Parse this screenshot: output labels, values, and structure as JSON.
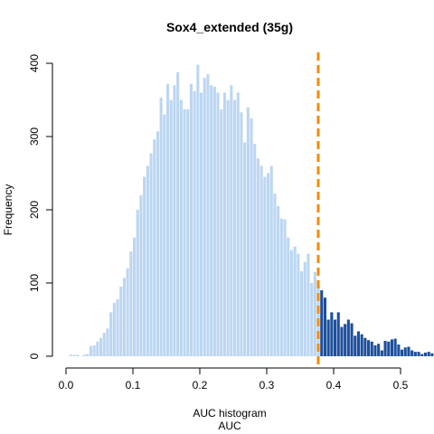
{
  "chart_data": {
    "type": "bar",
    "title": "Sox4_extended (35g)",
    "xlabel_line1": "AUC histogram",
    "xlabel_line2": "AUC",
    "ylabel": "Frequency",
    "xlim": [
      0,
      0.5
    ],
    "ylim": [
      0,
      400
    ],
    "x_ticks": [
      "0.0",
      "0.1",
      "0.2",
      "0.3",
      "0.4",
      "0.5"
    ],
    "y_ticks": [
      "0",
      "100",
      "200",
      "300",
      "400"
    ],
    "bin_start": 0.0,
    "bin_width": 0.005,
    "threshold": 0.377,
    "colors": {
      "below_threshold": "#bcd6f2",
      "above_threshold": "#1d4f9c",
      "threshold_line": "#f28c00"
    },
    "series": [
      {
        "values": [
          0,
          2,
          2,
          2,
          0,
          2,
          3,
          14,
          15,
          20,
          25,
          32,
          38,
          60,
          73,
          78,
          95,
          107,
          120,
          143,
          162,
          200,
          220,
          245,
          260,
          277,
          296,
          307,
          353,
          330,
          372,
          350,
          370,
          388,
          350,
          337,
          337,
          372,
          362,
          398,
          360,
          380,
          385,
          370,
          368,
          360,
          337,
          360,
          350,
          370,
          350,
          360,
          333,
          292,
          340,
          325,
          290,
          270,
          260,
          245,
          250,
          260,
          222,
          205,
          188,
          187,
          162,
          145,
          150,
          140,
          116,
          129,
          140,
          100,
          115,
          100,
          90,
          80,
          50,
          60,
          50,
          60,
          40,
          44,
          50,
          45,
          28,
          34,
          30,
          25,
          22,
          20,
          15,
          17,
          8,
          21,
          20,
          23,
          24,
          16,
          9,
          12,
          13,
          8,
          6,
          6,
          3,
          5,
          6,
          4,
          4,
          4,
          4,
          4,
          2,
          0,
          2,
          1,
          0,
          3,
          2,
          0
        ]
      }
    ]
  }
}
